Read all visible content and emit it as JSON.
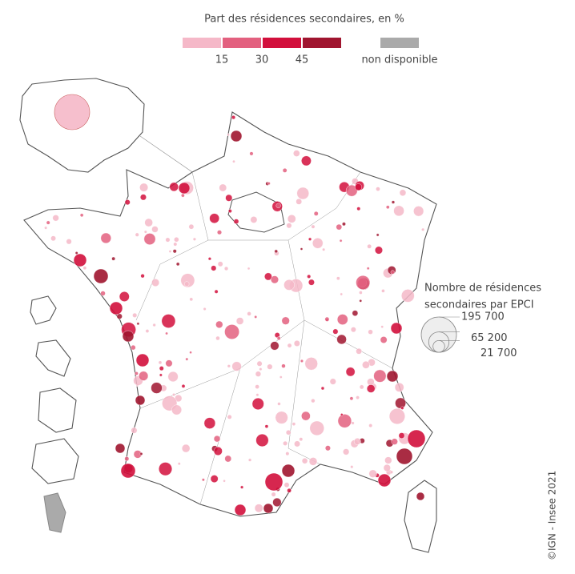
{
  "legend": {
    "title": "Part des résidences secondaires, en %",
    "colors": [
      "#f5b8c8",
      "#e3607f",
      "#d20f3c",
      "#a0152f"
    ],
    "breaks": [
      15,
      30,
      45
    ],
    "na_label": "non disponible",
    "na_color": "#aaaaaa"
  },
  "size_legend": {
    "title_lines": [
      "Nombre de résidences",
      "secondaires par EPCI"
    ],
    "values": [
      {
        "value": 195700,
        "label": "195 700"
      },
      {
        "value": 65200,
        "label": "65 200"
      },
      {
        "value": 21700,
        "label": "21 700"
      }
    ]
  },
  "credit": "©IGN - Insee 2021"
}
